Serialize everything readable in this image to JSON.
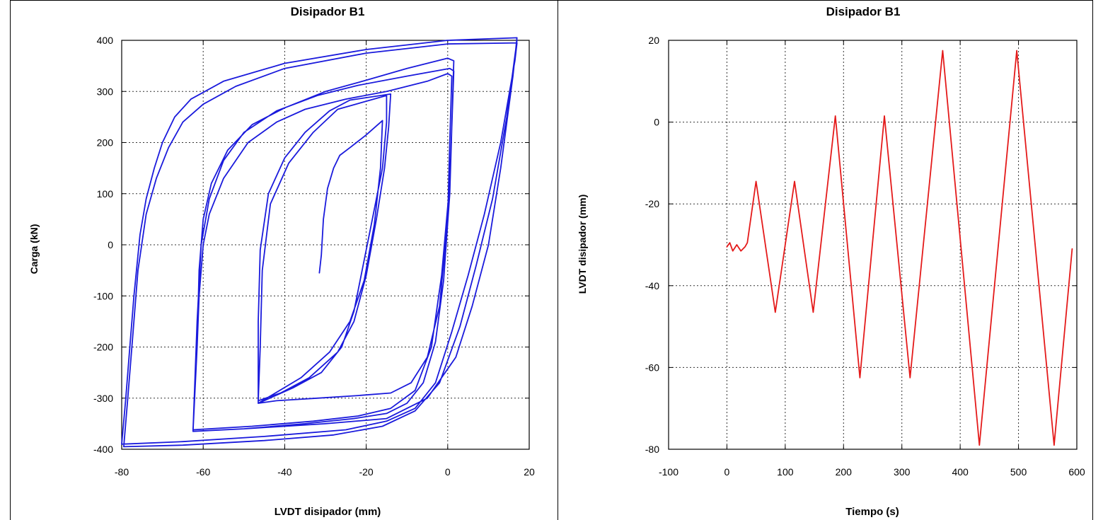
{
  "chart_data": [
    {
      "type": "line",
      "title": "Disipador B1",
      "xlabel": "LVDT disipador (mm)",
      "ylabel": "Carga (kN)",
      "xlim": [
        -80,
        20
      ],
      "ylim": [
        -400,
        400
      ],
      "xticks": [
        -80,
        -60,
        -40,
        -20,
        0,
        20
      ],
      "yticks": [
        -400,
        -300,
        -200,
        -100,
        0,
        100,
        200,
        300,
        400
      ],
      "grid": true,
      "line_color": "#1a1adc",
      "series": [
        {
          "values": [
            [
              -31.5,
              -55
            ],
            [
              -31,
              -20
            ],
            [
              -30.5,
              50
            ],
            [
              -29.5,
              110
            ],
            [
              -28,
              150
            ],
            [
              -26.5,
              175
            ],
            [
              -24,
              190
            ],
            [
              -20,
              215
            ],
            [
              -16,
              243
            ],
            [
              -16.5,
              150
            ],
            [
              -18,
              40
            ],
            [
              -20.5,
              -70
            ],
            [
              -24,
              -150
            ],
            [
              -29,
              -210
            ],
            [
              -36,
              -260
            ],
            [
              -46.5,
              -310
            ],
            [
              -46.5,
              -250
            ],
            [
              -46.5,
              -150
            ],
            [
              -46,
              -10
            ],
            [
              -44,
              100
            ],
            [
              -40,
              170
            ],
            [
              -35,
              220
            ],
            [
              -29,
              262
            ],
            [
              -24,
              283
            ],
            [
              -14,
              295
            ],
            [
              -14.5,
              230
            ],
            [
              -15.5,
              150
            ],
            [
              -17.5,
              50
            ],
            [
              -20,
              -60
            ],
            [
              -23,
              -150
            ],
            [
              -27,
              -210
            ],
            [
              -34,
              -260
            ],
            [
              -41,
              -290
            ],
            [
              -46.5,
              -305
            ],
            [
              -46,
              -200
            ],
            [
              -45.5,
              -50
            ],
            [
              -43.5,
              80
            ],
            [
              -39,
              160
            ],
            [
              -33,
              220
            ],
            [
              -27,
              265
            ],
            [
              -15,
              292
            ],
            [
              -15,
              240
            ],
            [
              -16,
              150
            ],
            [
              -19,
              30
            ],
            [
              -23,
              -130
            ],
            [
              -26,
              -200
            ],
            [
              -31,
              -250
            ],
            [
              -38,
              -280
            ],
            [
              -46.5,
              -310
            ],
            [
              -42,
              -305
            ],
            [
              -32,
              -300
            ],
            [
              -22,
              -295
            ],
            [
              -14,
              -290
            ],
            [
              -9,
              -270
            ],
            [
              -5,
              -220
            ],
            [
              -2,
              -120
            ],
            [
              0,
              50
            ],
            [
              0.5,
              200
            ],
            [
              1,
              330
            ],
            [
              0,
              335
            ],
            [
              -5,
              320
            ],
            [
              -15,
              300
            ],
            [
              -25,
              285
            ],
            [
              -35,
              265
            ],
            [
              -42,
              240
            ],
            [
              -49,
              200
            ],
            [
              -55,
              130
            ],
            [
              -58.5,
              60
            ],
            [
              -60,
              0
            ],
            [
              -61,
              -100
            ],
            [
              -61.5,
              -200
            ],
            [
              -62.5,
              -365
            ],
            [
              -50,
              -360
            ],
            [
              -35,
              -350
            ],
            [
              -23,
              -340
            ],
            [
              -15,
              -330
            ],
            [
              -10,
              -310
            ],
            [
              -6,
              -270
            ],
            [
              -3,
              -190
            ],
            [
              -1,
              -70
            ],
            [
              0.5,
              100
            ],
            [
              1.5,
              360
            ],
            [
              0,
              365
            ],
            [
              -10,
              345
            ],
            [
              -20,
              322
            ],
            [
              -30,
              300
            ],
            [
              -40,
              268
            ],
            [
              -48,
              235
            ],
            [
              -54,
              185
            ],
            [
              -58,
              120
            ],
            [
              -60,
              50
            ],
            [
              -61,
              -50
            ],
            [
              -61.5,
              -200
            ],
            [
              -62.5,
              -362
            ],
            [
              -48,
              -355
            ],
            [
              -33,
              -345
            ],
            [
              -22,
              -335
            ],
            [
              -14,
              -320
            ],
            [
              -8,
              -285
            ],
            [
              -4,
              -200
            ],
            [
              -1.5,
              -60
            ],
            [
              0.5,
              120
            ],
            [
              1.5,
              340
            ],
            [
              0.5,
              345
            ],
            [
              -10,
              330
            ],
            [
              -22,
              312
            ],
            [
              -32,
              292
            ],
            [
              -42,
              262
            ],
            [
              -50,
              220
            ],
            [
              -55,
              165
            ],
            [
              -58.5,
              90
            ],
            [
              -60.5,
              0
            ],
            [
              -61.5,
              -150
            ],
            [
              -62.5,
              -365
            ],
            [
              -50,
              -360
            ],
            [
              -30,
              -350
            ],
            [
              -15,
              -340
            ],
            [
              -5,
              -300
            ],
            [
              2,
              -220
            ],
            [
              6,
              -120
            ],
            [
              10,
              0
            ],
            [
              13,
              150
            ],
            [
              16,
              330
            ],
            [
              17,
              405
            ],
            [
              0,
              400
            ],
            [
              -20,
              382
            ],
            [
              -40,
              355
            ],
            [
              -55,
              320
            ],
            [
              -63,
              285
            ],
            [
              -67,
              250
            ],
            [
              -70,
              200
            ],
            [
              -72,
              150
            ],
            [
              -74,
              90
            ],
            [
              -75.5,
              20
            ],
            [
              -77,
              -100
            ],
            [
              -78,
              -200
            ],
            [
              -79,
              -300
            ],
            [
              -80,
              -390
            ],
            [
              -65,
              -385
            ],
            [
              -45,
              -375
            ],
            [
              -25,
              -362
            ],
            [
              -15,
              -345
            ],
            [
              -8,
              -320
            ],
            [
              -3,
              -270
            ],
            [
              1,
              -170
            ],
            [
              5,
              -60
            ],
            [
              9,
              60
            ],
            [
              13,
              200
            ],
            [
              16.5,
              360
            ],
            [
              17,
              395
            ],
            [
              0,
              393
            ],
            [
              -20,
              375
            ],
            [
              -40,
              345
            ],
            [
              -52,
              310
            ],
            [
              -60,
              275
            ],
            [
              -65,
              240
            ],
            [
              -68.5,
              190
            ],
            [
              -71.5,
              130
            ],
            [
              -74,
              60
            ],
            [
              -76,
              -50
            ],
            [
              -77.5,
              -200
            ],
            [
              -78.5,
              -300
            ],
            [
              -79.5,
              -395
            ],
            [
              -65,
              -392
            ],
            [
              -45,
              -383
            ],
            [
              -28,
              -372
            ],
            [
              -16,
              -355
            ],
            [
              -8,
              -325
            ],
            [
              -2,
              -270
            ],
            [
              3,
              -160
            ],
            [
              7,
              -40
            ],
            [
              11,
              90
            ],
            [
              14.5,
              250
            ],
            [
              17,
              400
            ]
          ]
        }
      ]
    },
    {
      "type": "line",
      "title": "Disipador B1",
      "xlabel": "Tiempo (s)",
      "ylabel": "LVDT disipador (mm)",
      "xlim": [
        -100,
        600
      ],
      "ylim": [
        -80,
        20
      ],
      "xticks": [
        -100,
        0,
        100,
        200,
        300,
        400,
        500,
        600
      ],
      "yticks": [
        -80,
        -60,
        -40,
        -20,
        0,
        20
      ],
      "grid": true,
      "line_color": "#e41a1a",
      "series": [
        {
          "values": [
            [
              0,
              -30.5
            ],
            [
              5,
              -29.5
            ],
            [
              10,
              -31.5
            ],
            [
              17,
              -30
            ],
            [
              24,
              -31.5
            ],
            [
              31,
              -30.5
            ],
            [
              35,
              -29.5
            ],
            [
              50,
              -14.5
            ],
            [
              83,
              -46.5
            ],
            [
              116,
              -14.5
            ],
            [
              148,
              -46.5
            ],
            [
              186,
              1.5
            ],
            [
              228,
              -62.5
            ],
            [
              270,
              1.5
            ],
            [
              314,
              -62.5
            ],
            [
              370,
              17.5
            ],
            [
              433,
              -79
            ],
            [
              497,
              17.5
            ],
            [
              561,
              -79
            ],
            [
              592,
              -31
            ]
          ]
        }
      ]
    }
  ]
}
